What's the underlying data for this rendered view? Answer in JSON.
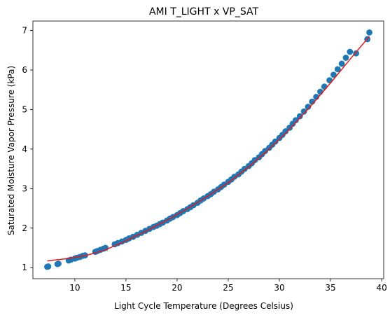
{
  "chart_data": {
    "type": "scatter",
    "title": "AMI T_LIGHT x VP_SAT",
    "xlabel": "Light Cycle Temperature (Degrees Celsius)",
    "ylabel": "Saturated Moisture Vapor Pressure (kPa)",
    "xlim": [
      5.9,
      40.2
    ],
    "ylim": [
      0.72,
      7.24
    ],
    "xticks": [
      10,
      15,
      20,
      25,
      30,
      35,
      40
    ],
    "yticks": [
      1,
      2,
      3,
      4,
      5,
      6,
      7
    ],
    "grid": false,
    "colors": {
      "points": "#1f77b4",
      "fit": "#e41a1c"
    },
    "series": [
      {
        "kind": "scatter",
        "x": [
          7.3,
          7.4,
          8.3,
          8.4,
          9.4,
          9.6,
          10.0,
          10.2,
          10.5,
          10.8,
          11.0,
          12.0,
          12.2,
          12.5,
          12.8,
          13.0,
          13.9,
          14.2,
          14.6,
          15.0,
          15.3,
          15.7,
          16.1,
          16.5,
          16.9,
          17.3,
          17.7,
          18.0,
          18.3,
          18.6,
          19.0,
          19.3,
          19.6,
          20.0,
          20.3,
          20.6,
          21.0,
          21.3,
          21.6,
          22.0,
          22.3,
          22.6,
          23.0,
          23.3,
          23.6,
          24.0,
          24.3,
          24.6,
          25.0,
          25.3,
          25.6,
          26.0,
          26.3,
          26.6,
          27.0,
          27.3,
          27.6,
          28.0,
          28.3,
          28.6,
          29.0,
          29.3,
          29.6,
          30.0,
          30.3,
          30.6,
          31.0,
          31.3,
          31.6,
          32.0,
          32.4,
          32.8,
          33.2,
          33.6,
          34.0,
          34.4,
          34.9,
          35.3,
          35.7,
          36.1,
          36.5,
          36.9,
          37.5,
          38.6,
          38.8
        ],
        "y": [
          1.02,
          1.03,
          1.09,
          1.1,
          1.18,
          1.2,
          1.23,
          1.25,
          1.27,
          1.3,
          1.31,
          1.4,
          1.42,
          1.45,
          1.48,
          1.5,
          1.59,
          1.62,
          1.66,
          1.7,
          1.74,
          1.78,
          1.83,
          1.88,
          1.93,
          1.98,
          2.03,
          2.06,
          2.1,
          2.14,
          2.19,
          2.24,
          2.28,
          2.33,
          2.38,
          2.43,
          2.48,
          2.53,
          2.58,
          2.64,
          2.7,
          2.75,
          2.81,
          2.86,
          2.92,
          2.98,
          3.04,
          3.1,
          3.17,
          3.23,
          3.3,
          3.36,
          3.43,
          3.5,
          3.57,
          3.64,
          3.72,
          3.79,
          3.87,
          3.95,
          4.03,
          4.11,
          4.19,
          4.28,
          4.36,
          4.45,
          4.54,
          4.64,
          4.73,
          4.83,
          4.95,
          5.07,
          5.2,
          5.32,
          5.45,
          5.58,
          5.74,
          5.88,
          6.02,
          6.16,
          6.31,
          6.46,
          6.42,
          6.78,
          6.95
        ]
      },
      {
        "kind": "line",
        "x": [
          7.3,
          9,
          11,
          13,
          15,
          17,
          19,
          21,
          23,
          25,
          27,
          29,
          31,
          33,
          35,
          37,
          38.8
        ],
        "y": [
          1.17,
          1.22,
          1.3,
          1.45,
          1.68,
          1.93,
          2.2,
          2.49,
          2.81,
          3.15,
          3.55,
          4.0,
          4.5,
          5.07,
          5.67,
          6.3,
          6.85
        ]
      }
    ]
  }
}
